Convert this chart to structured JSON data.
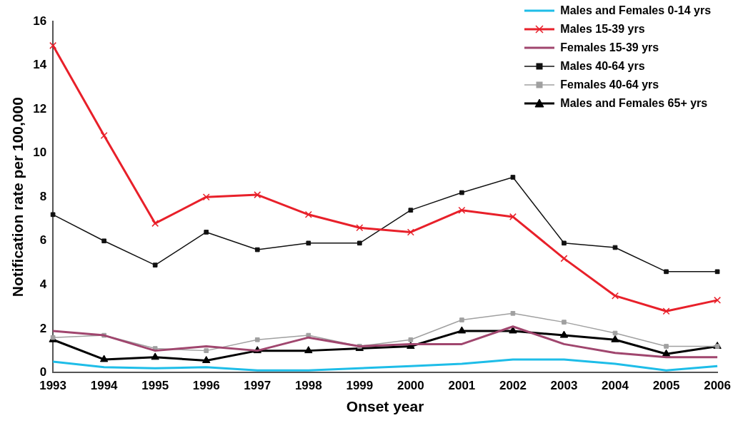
{
  "chart_data": {
    "type": "line",
    "xlabel": "Onset year",
    "ylabel": "Notification rate per 100,000",
    "categories": [
      "1993",
      "1994",
      "1995",
      "1996",
      "1997",
      "1998",
      "1999",
      "2000",
      "2001",
      "2002",
      "2003",
      "2004",
      "2005",
      "2006"
    ],
    "ylim": [
      0,
      16
    ],
    "yticks": [
      0,
      2,
      4,
      6,
      8,
      10,
      12,
      14,
      16
    ],
    "grid": false,
    "legend": "top right",
    "series": [
      {
        "name": "Males and Females 0-14 yrs",
        "color": "#1ebde8",
        "marker": "none",
        "values": [
          0.5,
          0.25,
          0.2,
          0.25,
          0.1,
          0.1,
          0.2,
          0.3,
          0.4,
          0.6,
          0.6,
          0.4,
          0.1,
          0.3
        ]
      },
      {
        "name": "Males 15-39 yrs",
        "color": "#e8202a",
        "marker": "cross",
        "values": [
          14.9,
          10.8,
          6.8,
          8.0,
          8.1,
          7.2,
          6.6,
          6.4,
          7.4,
          7.1,
          5.2,
          3.5,
          2.8,
          3.3
        ]
      },
      {
        "name": "Females 15-39 yrs",
        "color": "#a0466e",
        "marker": "none",
        "values": [
          1.9,
          1.7,
          1.0,
          1.2,
          1.0,
          1.6,
          1.2,
          1.3,
          1.3,
          2.1,
          1.3,
          0.9,
          0.7,
          0.7
        ]
      },
      {
        "name": "Males 40-64 yrs",
        "color": "#111111",
        "marker": "square",
        "values": [
          7.2,
          6.0,
          4.9,
          6.4,
          5.6,
          5.9,
          5.9,
          7.4,
          8.2,
          8.9,
          5.9,
          5.7,
          4.6,
          4.6
        ]
      },
      {
        "name": "Females 40-64 yrs",
        "color": "#a0a0a0",
        "marker": "square",
        "values": [
          1.6,
          1.7,
          1.1,
          1.0,
          1.5,
          1.7,
          1.2,
          1.5,
          2.4,
          2.7,
          2.3,
          1.8,
          1.2,
          1.2
        ]
      },
      {
        "name": "Males and Females 65+ yrs",
        "color": "#000000",
        "marker": "triangle",
        "values": [
          1.5,
          0.6,
          0.7,
          0.55,
          1.0,
          1.0,
          1.1,
          1.2,
          1.9,
          1.9,
          1.7,
          1.5,
          0.85,
          1.2
        ]
      }
    ]
  }
}
